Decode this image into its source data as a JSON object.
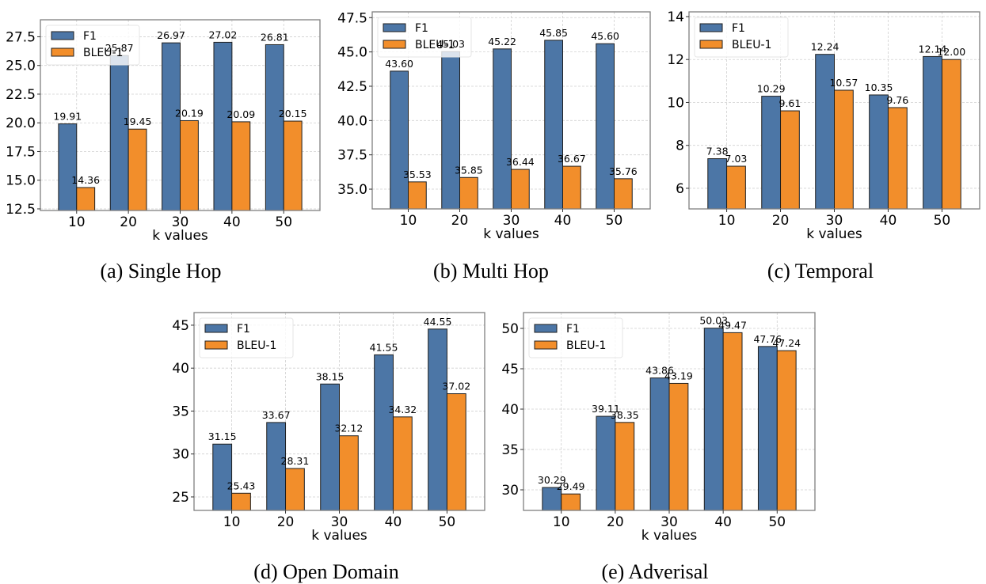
{
  "colors": {
    "f1": "#4c76a6",
    "bleu1": "#f28e2b"
  },
  "chart_data": [
    {
      "type": "bar",
      "id": "a",
      "caption": "(a)  Single Hop",
      "xlabel": "k values",
      "ylabel": "",
      "categories": [
        "10",
        "20",
        "30",
        "40",
        "50"
      ],
      "ylim": [
        12.36,
        28.98
      ],
      "yticks": [
        12.5,
        15.0,
        17.5,
        20.0,
        22.5,
        25.0,
        27.5
      ],
      "ytick_labels": [
        "12.5",
        "15.0",
        "17.5",
        "20.0",
        "22.5",
        "25.0",
        "27.5"
      ],
      "grid": true,
      "legend": "top-left",
      "series": [
        {
          "name": "F1",
          "values": [
            19.91,
            25.87,
            26.97,
            27.02,
            26.81
          ],
          "labels": [
            "19.91",
            "25.87",
            "26.97",
            "27.02",
            "26.81"
          ]
        },
        {
          "name": "BLEU-1",
          "values": [
            14.36,
            19.45,
            20.19,
            20.09,
            20.15
          ],
          "labels": [
            "14.36",
            "19.45",
            "20.19",
            "20.09",
            "20.15"
          ]
        }
      ]
    },
    {
      "type": "bar",
      "id": "b",
      "caption": "(b)  Multi Hop",
      "xlabel": "k values",
      "ylabel": "",
      "categories": [
        "10",
        "20",
        "30",
        "40",
        "50"
      ],
      "ylim": [
        33.56,
        47.92
      ],
      "yticks": [
        35.0,
        37.5,
        40.0,
        42.5,
        45.0,
        47.5
      ],
      "ytick_labels": [
        "35.0",
        "37.5",
        "40.0",
        "42.5",
        "45.0",
        "47.5"
      ],
      "grid": true,
      "legend": "top-left",
      "series": [
        {
          "name": "F1",
          "values": [
            43.6,
            45.03,
            45.22,
            45.85,
            45.6
          ],
          "labels": [
            "43.60",
            "45.03",
            "45.22",
            "45.85",
            "45.60"
          ]
        },
        {
          "name": "BLEU-1",
          "values": [
            35.53,
            35.85,
            36.44,
            36.67,
            35.76
          ],
          "labels": [
            "35.53",
            "35.85",
            "36.44",
            "36.67",
            "35.76"
          ]
        }
      ]
    },
    {
      "type": "bar",
      "id": "c",
      "caption": "(c)  Temporal",
      "xlabel": "k values",
      "ylabel": "",
      "categories": [
        "10",
        "20",
        "30",
        "40",
        "50"
      ],
      "ylim": [
        5.04,
        14.22
      ],
      "yticks": [
        6,
        8,
        10,
        12,
        14
      ],
      "ytick_labels": [
        "6",
        "8",
        "10",
        "12",
        "14"
      ],
      "grid": true,
      "legend": "top-left",
      "series": [
        {
          "name": "F1",
          "values": [
            7.38,
            10.29,
            12.24,
            10.35,
            12.14
          ],
          "labels": [
            "7.38",
            "10.29",
            "12.24",
            "10.35",
            "12.14"
          ]
        },
        {
          "name": "BLEU-1",
          "values": [
            7.03,
            9.61,
            10.57,
            9.76,
            12.0
          ],
          "labels": [
            "7.03",
            "9.61",
            "10.57",
            "9.76",
            "12.00"
          ]
        }
      ]
    },
    {
      "type": "bar",
      "id": "d",
      "caption": "(d)  Open Domain",
      "xlabel": "k values",
      "ylabel": "",
      "categories": [
        "10",
        "20",
        "30",
        "40",
        "50"
      ],
      "ylim": [
        23.43,
        46.47
      ],
      "yticks": [
        25,
        30,
        35,
        40,
        45
      ],
      "ytick_labels": [
        "25",
        "30",
        "35",
        "40",
        "45"
      ],
      "grid": true,
      "legend": "top-left",
      "series": [
        {
          "name": "F1",
          "values": [
            31.15,
            33.67,
            38.15,
            41.55,
            44.55
          ],
          "labels": [
            "31.15",
            "33.67",
            "38.15",
            "41.55",
            "44.55"
          ]
        },
        {
          "name": "BLEU-1",
          "values": [
            25.43,
            28.31,
            32.12,
            34.32,
            37.02
          ],
          "labels": [
            "25.43",
            "28.31",
            "32.12",
            "34.32",
            "37.02"
          ]
        }
      ]
    },
    {
      "type": "bar",
      "id": "e",
      "caption": "(e)  Adverisal",
      "xlabel": "k values",
      "ylabel": "",
      "categories": [
        "10",
        "20",
        "30",
        "40",
        "50"
      ],
      "ylim": [
        27.45,
        51.96
      ],
      "yticks": [
        30,
        35,
        40,
        45,
        50
      ],
      "ytick_labels": [
        "30",
        "35",
        "40",
        "45",
        "50"
      ],
      "grid": true,
      "legend": "top-left",
      "series": [
        {
          "name": "F1",
          "values": [
            30.29,
            39.11,
            43.86,
            50.03,
            47.76
          ],
          "labels": [
            "30.29",
            "39.11",
            "43.86",
            "50.03",
            "47.76"
          ]
        },
        {
          "name": "BLEU-1",
          "values": [
            29.49,
            38.35,
            43.19,
            49.47,
            47.24
          ],
          "labels": [
            "29.49",
            "38.35",
            "43.19",
            "49.47",
            "47.24"
          ]
        }
      ]
    }
  ]
}
